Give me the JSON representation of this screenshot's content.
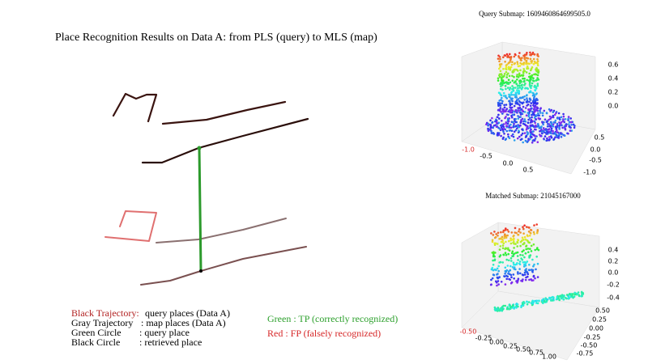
{
  "title": "Place Recognition Results on Data A: from PLS (query) to MLS (map)",
  "legend": [
    {
      "key": "Black Trajectory:",
      "text": "query places (Data A)"
    },
    {
      "key": "Gray Trajectory",
      "text": ": map places (Data A)"
    },
    {
      "key": "Green Circle",
      "text": ": query place"
    },
    {
      "key": "Black Circle",
      "text": ": retrieved place"
    }
  ],
  "status": [
    "Green : TP (correctly recognized)",
    "Red    : FP (falsely recognized)"
  ],
  "query_submap": {
    "title": "Query Submap: 1609460864699505.0",
    "z_ticks": [
      "0.6",
      "0.4",
      "0.2",
      "0.0"
    ],
    "x_ticks": [
      "-1.0",
      "-0.5",
      "0.0",
      "0.5"
    ],
    "y_ticks": [
      "0.5",
      "0.0",
      "-0.5",
      "-1.0"
    ]
  },
  "matched_submap": {
    "title": "Matched Submap: 21045167000",
    "z_ticks": [
      "0.4",
      "0.2",
      "0.0",
      "-0.2",
      "-0.4"
    ],
    "x_ticks": [
      "-0.50",
      "-0.25",
      "0.00",
      "0.25",
      "0.50",
      "0.75",
      "1.00"
    ],
    "y_ticks": [
      "0.50",
      "0.25",
      "0.00",
      "-0.25",
      "-0.50",
      "-0.75"
    ]
  }
}
